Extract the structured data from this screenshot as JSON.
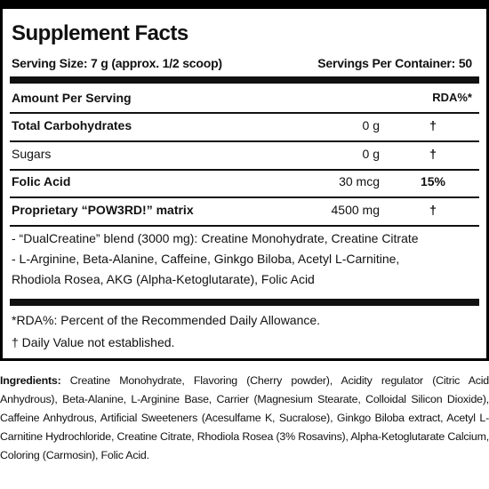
{
  "facts": {
    "title": "Supplement Facts",
    "serving_size": "Serving Size: 7 g (approx. 1/2 scoop)",
    "servings_per_container": "Servings Per Container: 50",
    "amount_per_serving": "Amount Per Serving",
    "rda_header": "RDA%*",
    "rows": [
      {
        "name": "Total Carbohydrates",
        "amount": "0 g",
        "rda": "†"
      },
      {
        "name": "Sugars",
        "amount": "0 g",
        "rda": "†"
      },
      {
        "name": "Folic Acid",
        "amount": "30 mcg",
        "rda": "15%"
      },
      {
        "name": "Proprietary “POW3RD!” matrix",
        "amount": "4500 mg",
        "rda": "†"
      }
    ],
    "blend_lines": [
      "- “DualCreatine” blend (3000 mg): Creatine Monohydrate, Creatine Citrate",
      "- L-Arginine, Beta-Alanine, Caffeine, Ginkgo Biloba, Acetyl L-Carnitine,",
      "Rhodiola Rosea, AKG (Alpha-Ketoglutarate), Folic Acid"
    ],
    "footnotes": [
      "*RDA%: Percent of the Recommended Daily Allowance.",
      "† Daily Value not established."
    ]
  },
  "ingredients": {
    "label": "Ingredients:",
    "text": "Creatine Monohydrate, Flavoring (Cherry powder), Acidity regulator (Citric Acid Anhydrous), Beta-Alanine, L-Arginine Base, Carrier (Magnesium Stearate, Colloidal Silicon Dioxide), Caffeine Anhydrous, Artificial Sweeteners (Acesulfame K, Sucralose), Ginkgo Biloba extract, Acetyl L-Carnitine Hydrochloride, Creatine Citrate, Rhodiola Rosea (3% Rosavins), Alpha-Ketoglutarate Calcium, Coloring (Carmosin), Folic Acid."
  }
}
